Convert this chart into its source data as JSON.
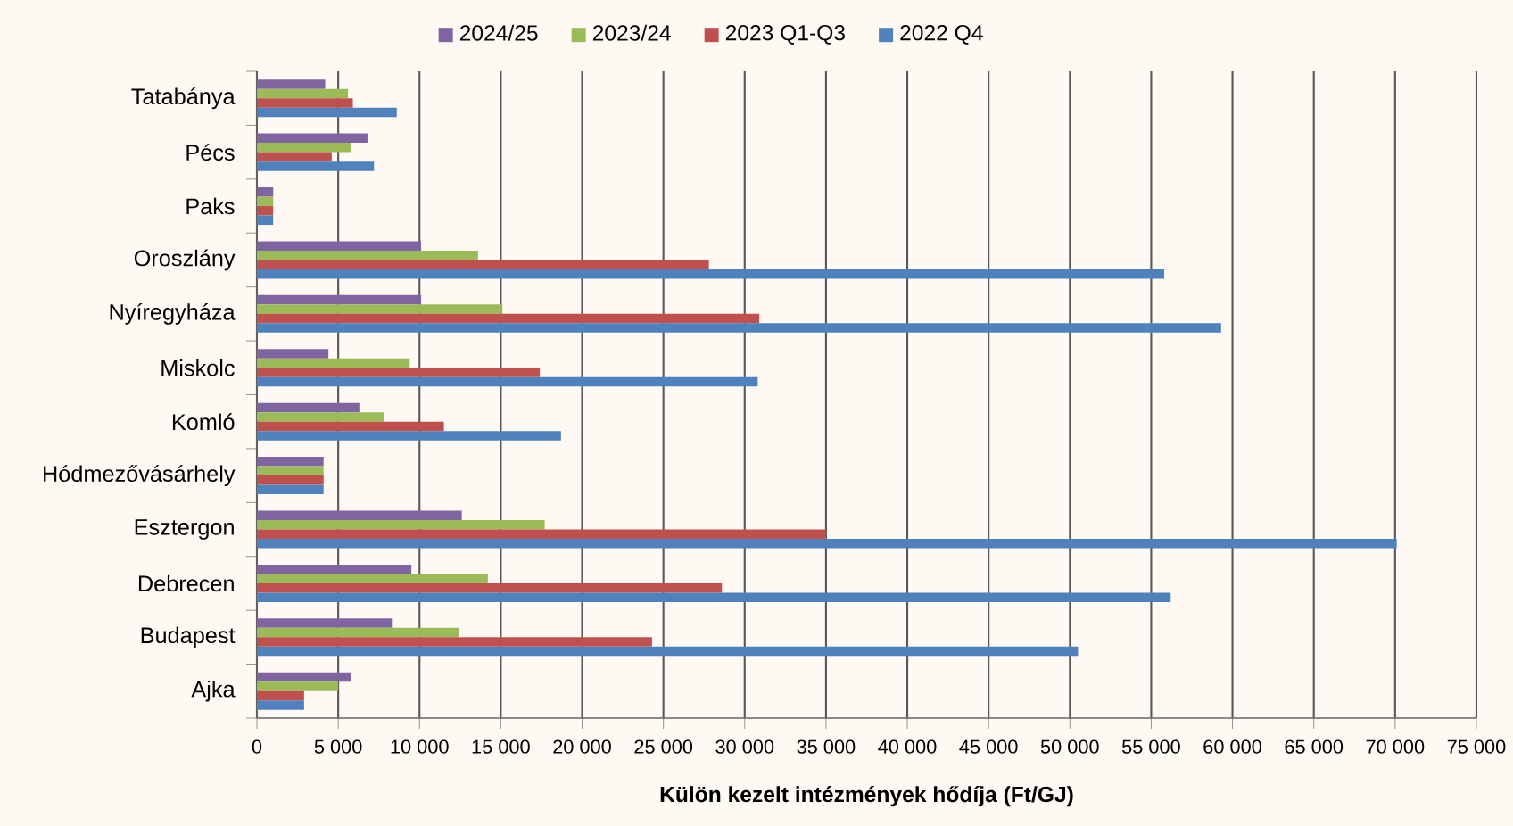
{
  "chart_data": {
    "type": "bar",
    "orientation": "horizontal",
    "xlabel": "Külön kezelt intézmények hődíja (Ft/GJ)",
    "categories": [
      "Tatabánya",
      "Pécs",
      "Paks",
      "Oroszlány",
      "Nyíregyháza",
      "Miskolc",
      "Komló",
      "Hódmezővásárhely",
      "Esztergon",
      "Debrecen",
      "Budapest",
      "Ajka"
    ],
    "series": [
      {
        "name": "2024/25",
        "color": "#8064a2",
        "values": [
          4200,
          6800,
          1000,
          10100,
          10100,
          4400,
          6300,
          4100,
          12600,
          9500,
          8300,
          5800
        ]
      },
      {
        "name": "2023/24",
        "color": "#9bbb59",
        "values": [
          5600,
          5800,
          1000,
          13600,
          15100,
          9400,
          7800,
          4100,
          17700,
          14200,
          12400,
          5000
        ]
      },
      {
        "name": "2023 Q1-Q3",
        "color": "#c0504d",
        "values": [
          5900,
          4600,
          1000,
          27800,
          30900,
          17400,
          11500,
          4100,
          35000,
          28600,
          24300,
          2900
        ]
      },
      {
        "name": "2022 Q4",
        "color": "#4f81bd",
        "values": [
          8600,
          7200,
          1000,
          55800,
          59300,
          30800,
          18700,
          4100,
          70100,
          56200,
          50500,
          2900
        ]
      }
    ],
    "xlim": [
      0,
      75000
    ],
    "xticks": [
      0,
      {
        "value": 5000,
        "label": "5 000"
      },
      {
        "value": 10000,
        "label": "10 000"
      },
      {
        "value": 15000,
        "label": "15 000"
      },
      {
        "value": 20000,
        "label": "20 000"
      },
      {
        "value": 25000,
        "label": "25 000"
      },
      {
        "value": 30000,
        "label": "30 000"
      },
      {
        "value": 35000,
        "label": "35 000"
      },
      {
        "value": 40000,
        "label": "40 000"
      },
      {
        "value": 45000,
        "label": "45 000"
      },
      {
        "value": 50000,
        "label": "50 000"
      },
      {
        "value": 55000,
        "label": "55 000"
      },
      {
        "value": 60000,
        "label": "60 000"
      },
      {
        "value": 65000,
        "label": "65 000"
      },
      {
        "value": 70000,
        "label": "70 000"
      },
      {
        "value": 75000,
        "label": "75 000"
      }
    ],
    "grid": "x",
    "legend": "top"
  }
}
